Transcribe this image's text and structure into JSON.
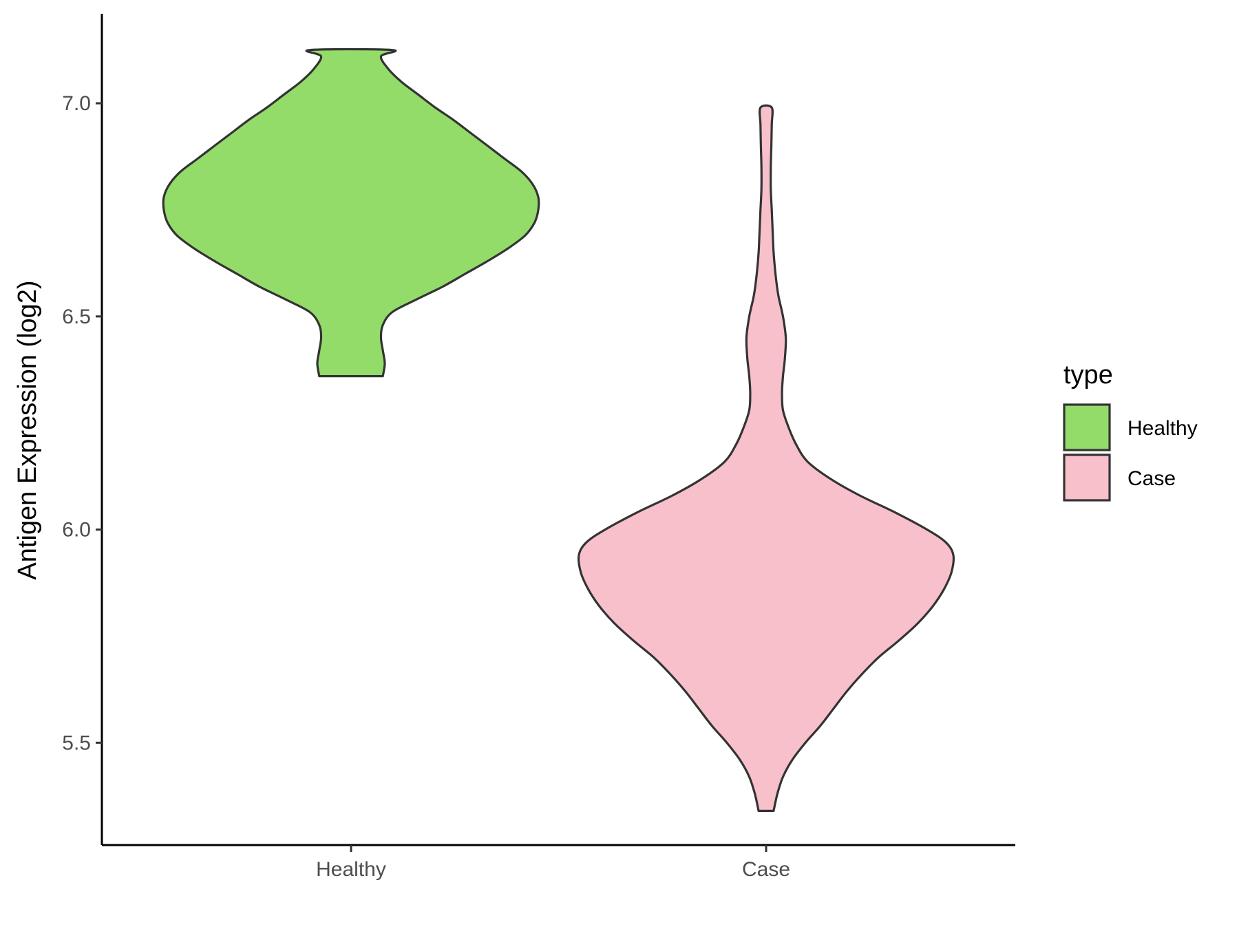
{
  "chart_data": {
    "type": "violin",
    "ylabel": "Antigen Expression (log2)",
    "xlabel": "",
    "title": "",
    "categories": [
      "Healthy",
      "Case"
    ],
    "yticks": [
      5.5,
      6.0,
      6.5,
      7.0
    ],
    "ytick_labels": [
      "5.5",
      "6.0",
      "6.5",
      "7.0"
    ],
    "ylim": [
      5.26,
      7.21
    ],
    "grid": false,
    "legend": {
      "title": "type",
      "placement": "right",
      "items": [
        {
          "label": "Healthy",
          "color": "#93DC6A"
        },
        {
          "label": "Case",
          "color": "#F8C0CB"
        }
      ]
    },
    "series": [
      {
        "category": "Healthy",
        "color": "#93DC6A",
        "min": 6.36,
        "max": 7.125,
        "density_profile": [
          [
            6.36,
            0.17
          ],
          [
            6.39,
            0.18
          ],
          [
            6.42,
            0.17
          ],
          [
            6.45,
            0.16
          ],
          [
            6.48,
            0.17
          ],
          [
            6.51,
            0.22
          ],
          [
            6.54,
            0.35
          ],
          [
            6.57,
            0.49
          ],
          [
            6.6,
            0.61
          ],
          [
            6.63,
            0.73
          ],
          [
            6.66,
            0.84
          ],
          [
            6.69,
            0.93
          ],
          [
            6.72,
            0.98
          ],
          [
            6.75,
            1.0
          ],
          [
            6.78,
            1.0
          ],
          [
            6.81,
            0.97
          ],
          [
            6.84,
            0.91
          ],
          [
            6.87,
            0.82
          ],
          [
            6.9,
            0.73
          ],
          [
            6.93,
            0.64
          ],
          [
            6.96,
            0.55
          ],
          [
            6.99,
            0.45
          ],
          [
            7.02,
            0.36
          ],
          [
            7.05,
            0.27
          ],
          [
            7.08,
            0.2
          ],
          [
            7.11,
            0.16
          ],
          [
            7.125,
            0.22
          ]
        ]
      },
      {
        "category": "Case",
        "color": "#F8C0CB",
        "min": 5.34,
        "max": 6.99,
        "density_profile": [
          [
            5.34,
            0.04
          ],
          [
            5.38,
            0.06
          ],
          [
            5.42,
            0.09
          ],
          [
            5.46,
            0.14
          ],
          [
            5.5,
            0.21
          ],
          [
            5.54,
            0.29
          ],
          [
            5.58,
            0.36
          ],
          [
            5.62,
            0.43
          ],
          [
            5.66,
            0.51
          ],
          [
            5.7,
            0.6
          ],
          [
            5.74,
            0.71
          ],
          [
            5.78,
            0.81
          ],
          [
            5.82,
            0.89
          ],
          [
            5.86,
            0.95
          ],
          [
            5.9,
            0.99
          ],
          [
            5.94,
            1.0
          ],
          [
            5.97,
            0.96
          ],
          [
            6.0,
            0.86
          ],
          [
            6.04,
            0.69
          ],
          [
            6.08,
            0.5
          ],
          [
            6.12,
            0.34
          ],
          [
            6.16,
            0.22
          ],
          [
            6.2,
            0.16
          ],
          [
            6.24,
            0.12
          ],
          [
            6.28,
            0.09
          ],
          [
            6.32,
            0.085
          ],
          [
            6.36,
            0.09
          ],
          [
            6.4,
            0.1
          ],
          [
            6.45,
            0.105
          ],
          [
            6.5,
            0.09
          ],
          [
            6.55,
            0.065
          ],
          [
            6.6,
            0.05
          ],
          [
            6.65,
            0.04
          ],
          [
            6.7,
            0.035
          ],
          [
            6.75,
            0.03
          ],
          [
            6.8,
            0.025
          ],
          [
            6.85,
            0.025
          ],
          [
            6.9,
            0.028
          ],
          [
            6.95,
            0.03
          ],
          [
            6.99,
            0.03
          ]
        ]
      }
    ]
  }
}
